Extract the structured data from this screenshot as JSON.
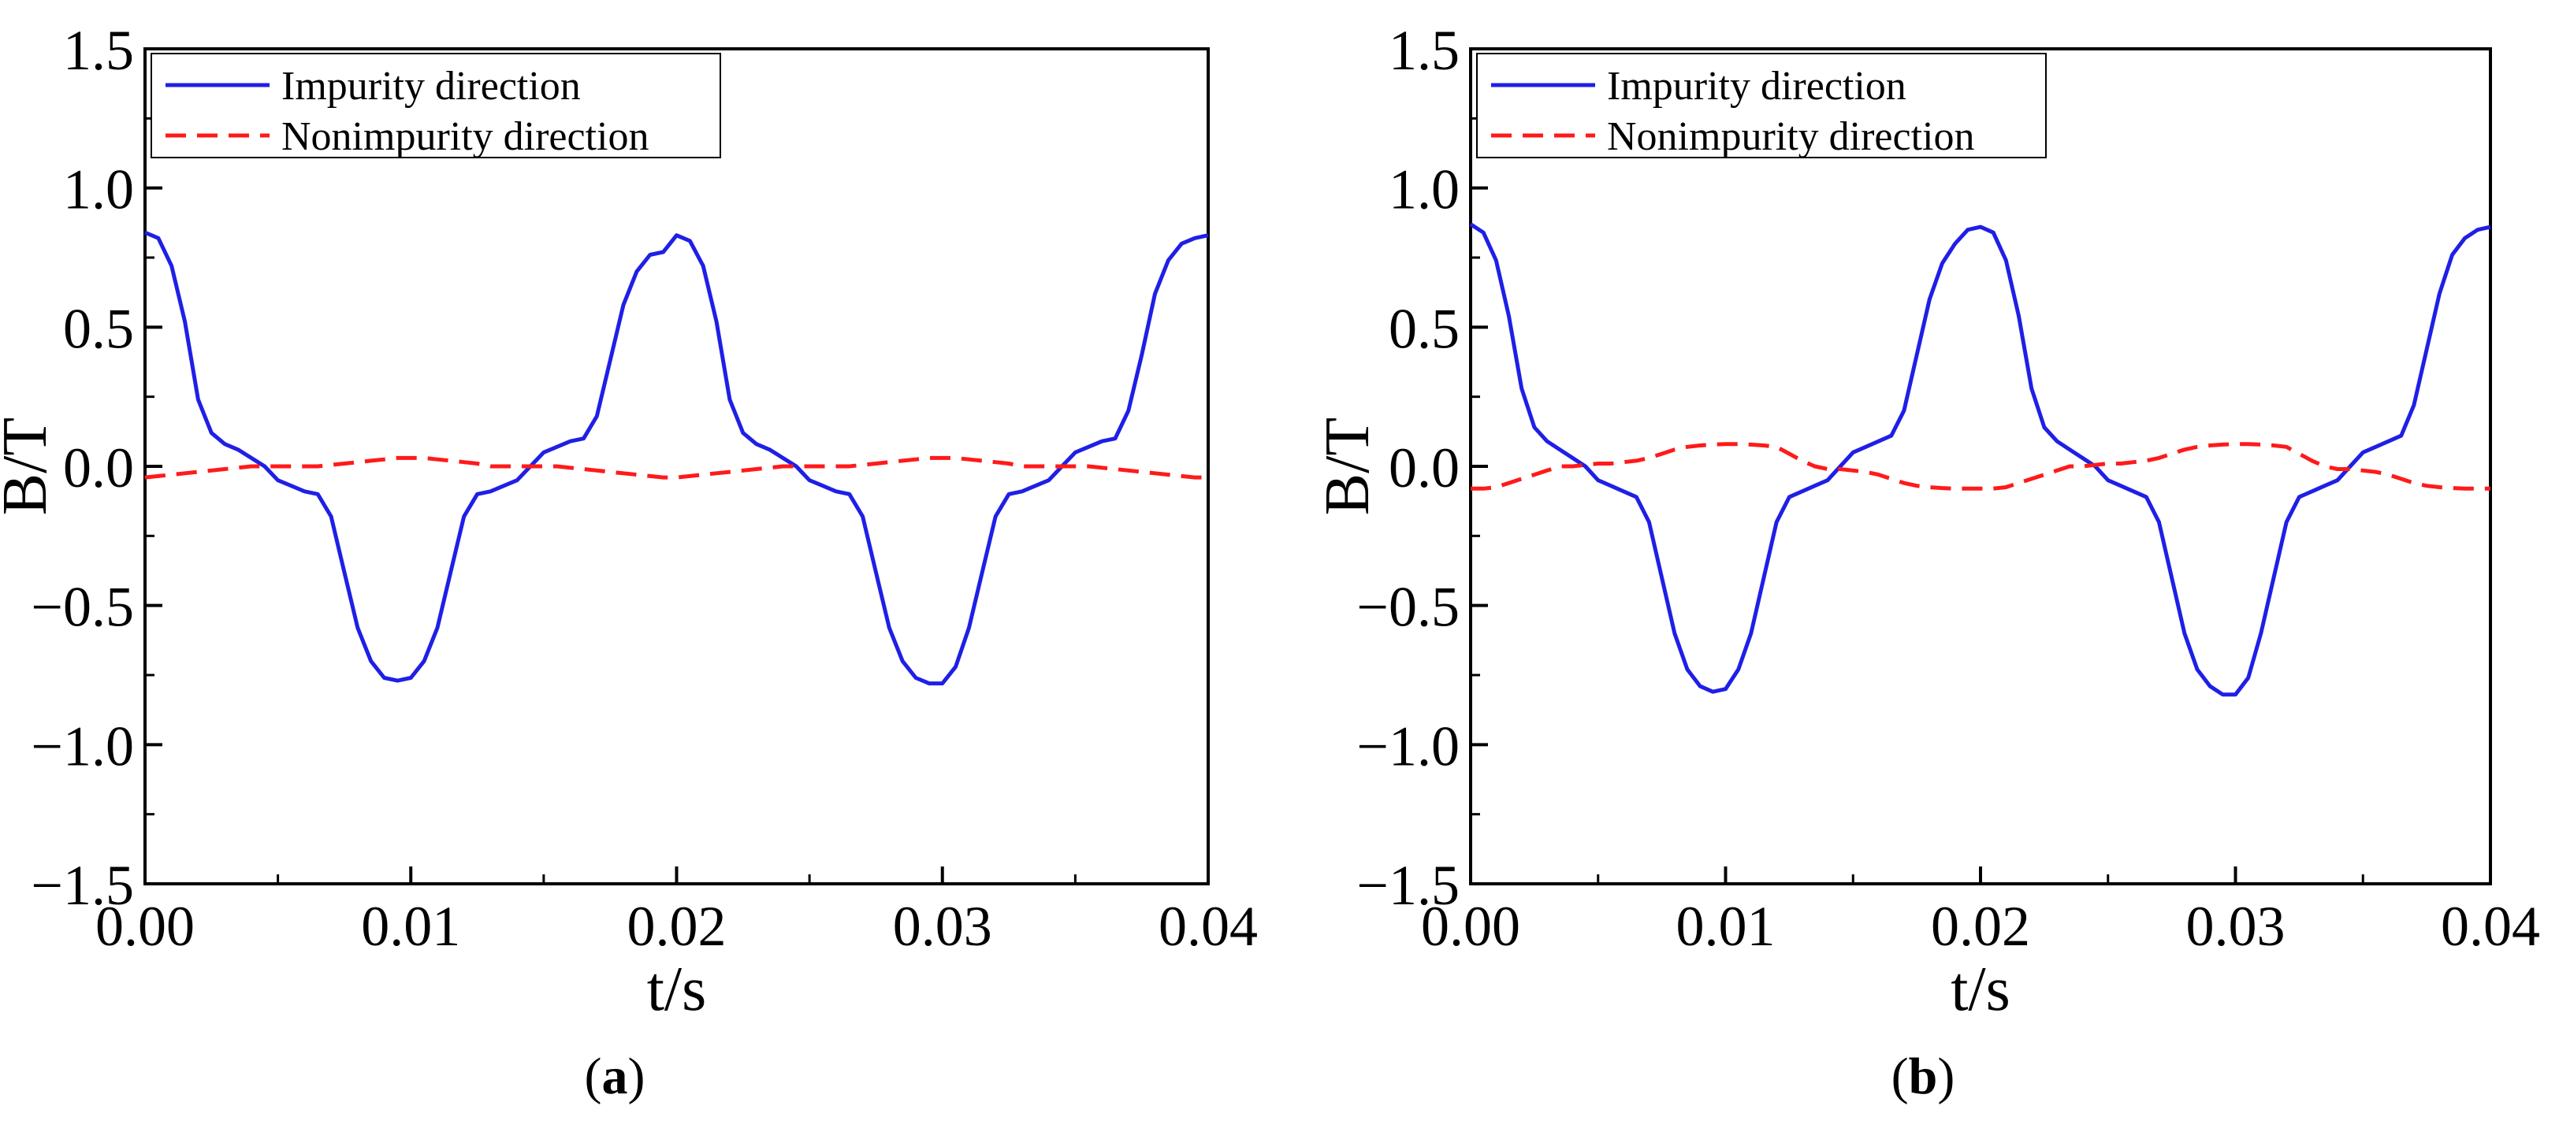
{
  "chart_data": [
    {
      "type": "line",
      "panel_label": "a",
      "caption_open": "(",
      "caption_close": ")",
      "xlabel": "t/s",
      "ylabel": "B/T",
      "xlim": [
        0.0,
        0.04
      ],
      "ylim": [
        -1.5,
        1.5
      ],
      "xticks": [
        "0.00",
        "0.01",
        "0.02",
        "0.03",
        "0.04"
      ],
      "xtick_values": [
        0.0,
        0.01,
        0.02,
        0.03,
        0.04
      ],
      "yticks": [
        "1.5",
        "1.0",
        "0.5",
        "0.0",
        "−0.5",
        "−1.0",
        "−1.5"
      ],
      "ytick_values": [
        1.5,
        1.0,
        0.5,
        0.0,
        -0.5,
        -1.0,
        -1.5
      ],
      "legend_position": "top-left",
      "x": [
        0.0,
        0.0005,
        0.001,
        0.0015,
        0.002,
        0.0025,
        0.003,
        0.0035,
        0.004,
        0.0045,
        0.005,
        0.0055,
        0.006,
        0.0065,
        0.007,
        0.0075,
        0.008,
        0.0085,
        0.009,
        0.0095,
        0.01,
        0.0105,
        0.011,
        0.0115,
        0.012,
        0.0125,
        0.013,
        0.0135,
        0.014,
        0.0145,
        0.015,
        0.0155,
        0.016,
        0.0165,
        0.017,
        0.0175,
        0.018,
        0.0185,
        0.019,
        0.0195,
        0.02,
        0.0205,
        0.021,
        0.0215,
        0.022,
        0.0225,
        0.023,
        0.0235,
        0.024,
        0.0245,
        0.025,
        0.0255,
        0.026,
        0.0265,
        0.027,
        0.0275,
        0.028,
        0.0285,
        0.029,
        0.0295,
        0.03,
        0.0305,
        0.031,
        0.0315,
        0.032,
        0.0325,
        0.033,
        0.0335,
        0.034,
        0.0345,
        0.035,
        0.0355,
        0.036,
        0.0365,
        0.037,
        0.0375,
        0.038,
        0.0385,
        0.039,
        0.0395,
        0.04
      ],
      "series": [
        {
          "name": "Impurity direction",
          "color": "#1f1fe6",
          "style": "solid",
          "values": [
            0.84,
            0.82,
            0.72,
            0.52,
            0.24,
            0.12,
            0.08,
            0.06,
            0.03,
            0.0,
            -0.05,
            -0.07,
            -0.09,
            -0.1,
            -0.18,
            -0.38,
            -0.58,
            -0.7,
            -0.76,
            -0.77,
            -0.76,
            -0.7,
            -0.58,
            -0.38,
            -0.18,
            -0.1,
            -0.09,
            -0.07,
            -0.05,
            0.0,
            0.05,
            0.07,
            0.09,
            0.1,
            0.18,
            0.38,
            0.58,
            0.7,
            0.76,
            0.77,
            0.83,
            0.81,
            0.72,
            0.52,
            0.24,
            0.12,
            0.08,
            0.06,
            0.03,
            0.0,
            -0.05,
            -0.07,
            -0.09,
            -0.1,
            -0.18,
            -0.38,
            -0.58,
            -0.7,
            -0.76,
            -0.78,
            -0.78,
            -0.72,
            -0.58,
            -0.38,
            -0.18,
            -0.1,
            -0.09,
            -0.07,
            -0.05,
            0.0,
            0.05,
            0.07,
            0.09,
            0.1,
            0.2,
            0.4,
            0.62,
            0.74,
            0.8,
            0.82,
            0.83
          ]
        },
        {
          "name": "Nonimpurity direction",
          "color": "#ff1a1a",
          "style": "dashed",
          "values": [
            -0.04,
            -0.035,
            -0.03,
            -0.025,
            -0.02,
            -0.015,
            -0.01,
            -0.005,
            0.0,
            0.0,
            0.0,
            0.0,
            0.0,
            0.0,
            0.005,
            0.01,
            0.015,
            0.02,
            0.025,
            0.03,
            0.03,
            0.03,
            0.025,
            0.02,
            0.015,
            0.01,
            0.0,
            0.0,
            0.0,
            0.0,
            0.0,
            0.0,
            -0.005,
            -0.01,
            -0.015,
            -0.02,
            -0.025,
            -0.03,
            -0.035,
            -0.04,
            -0.04,
            -0.035,
            -0.03,
            -0.025,
            -0.02,
            -0.015,
            -0.01,
            -0.005,
            0.0,
            0.0,
            0.0,
            0.0,
            0.0,
            0.0,
            0.005,
            0.01,
            0.015,
            0.02,
            0.025,
            0.03,
            0.03,
            0.03,
            0.025,
            0.02,
            0.015,
            0.01,
            0.0,
            0.0,
            0.0,
            0.0,
            0.0,
            0.0,
            -0.005,
            -0.01,
            -0.015,
            -0.02,
            -0.025,
            -0.03,
            -0.035,
            -0.04,
            -0.04
          ]
        }
      ]
    },
    {
      "type": "line",
      "panel_label": "b",
      "caption_open": "(",
      "caption_close": ")",
      "xlabel": "t/s",
      "ylabel": "B/T",
      "xlim": [
        0.0,
        0.04
      ],
      "ylim": [
        -1.5,
        1.5
      ],
      "xticks": [
        "0.00",
        "0.01",
        "0.02",
        "0.03",
        "0.04"
      ],
      "xtick_values": [
        0.0,
        0.01,
        0.02,
        0.03,
        0.04
      ],
      "yticks": [
        "1.5",
        "1.0",
        "0.5",
        "0.0",
        "−0.5",
        "−1.0",
        "−1.5"
      ],
      "ytick_values": [
        1.5,
        1.0,
        0.5,
        0.0,
        -0.5,
        -1.0,
        -1.5
      ],
      "legend_position": "top-left",
      "x": [
        0.0,
        0.0005,
        0.001,
        0.0015,
        0.002,
        0.0025,
        0.003,
        0.0035,
        0.004,
        0.0045,
        0.005,
        0.0055,
        0.006,
        0.0065,
        0.007,
        0.0075,
        0.008,
        0.0085,
        0.009,
        0.0095,
        0.01,
        0.0105,
        0.011,
        0.0115,
        0.012,
        0.0125,
        0.013,
        0.0135,
        0.014,
        0.0145,
        0.015,
        0.0155,
        0.016,
        0.0165,
        0.017,
        0.0175,
        0.018,
        0.0185,
        0.019,
        0.0195,
        0.02,
        0.0205,
        0.021,
        0.0215,
        0.022,
        0.0225,
        0.023,
        0.0235,
        0.024,
        0.0245,
        0.025,
        0.0255,
        0.026,
        0.0265,
        0.027,
        0.0275,
        0.028,
        0.0285,
        0.029,
        0.0295,
        0.03,
        0.0305,
        0.031,
        0.0315,
        0.032,
        0.0325,
        0.033,
        0.0335,
        0.034,
        0.0345,
        0.035,
        0.0355,
        0.036,
        0.0365,
        0.037,
        0.0375,
        0.038,
        0.0385,
        0.039,
        0.0395,
        0.04
      ],
      "series": [
        {
          "name": "Impurity direction",
          "color": "#1f1fe6",
          "style": "solid",
          "values": [
            0.87,
            0.84,
            0.74,
            0.54,
            0.28,
            0.14,
            0.09,
            0.06,
            0.03,
            0.0,
            -0.05,
            -0.07,
            -0.09,
            -0.11,
            -0.2,
            -0.4,
            -0.6,
            -0.73,
            -0.79,
            -0.81,
            -0.8,
            -0.73,
            -0.6,
            -0.4,
            -0.2,
            -0.11,
            -0.09,
            -0.07,
            -0.05,
            0.0,
            0.05,
            0.07,
            0.09,
            0.11,
            0.2,
            0.4,
            0.6,
            0.73,
            0.8,
            0.85,
            0.86,
            0.84,
            0.74,
            0.54,
            0.28,
            0.14,
            0.09,
            0.06,
            0.03,
            0.0,
            -0.05,
            -0.07,
            -0.09,
            -0.11,
            -0.2,
            -0.4,
            -0.6,
            -0.73,
            -0.79,
            -0.82,
            -0.82,
            -0.76,
            -0.6,
            -0.4,
            -0.2,
            -0.11,
            -0.09,
            -0.07,
            -0.05,
            0.0,
            0.05,
            0.07,
            0.09,
            0.11,
            0.22,
            0.42,
            0.62,
            0.76,
            0.82,
            0.85,
            0.86
          ]
        },
        {
          "name": "Nonimpurity direction",
          "color": "#ff1a1a",
          "style": "dashed",
          "values": [
            -0.08,
            -0.08,
            -0.075,
            -0.06,
            -0.045,
            -0.03,
            -0.015,
            0.0,
            0.0,
            0.005,
            0.01,
            0.01,
            0.015,
            0.02,
            0.03,
            0.045,
            0.06,
            0.07,
            0.075,
            0.078,
            0.08,
            0.08,
            0.078,
            0.075,
            0.07,
            0.045,
            0.02,
            0.0,
            -0.01,
            -0.01,
            -0.015,
            -0.02,
            -0.03,
            -0.045,
            -0.06,
            -0.07,
            -0.075,
            -0.078,
            -0.08,
            -0.08,
            -0.08,
            -0.08,
            -0.075,
            -0.06,
            -0.045,
            -0.03,
            -0.015,
            0.0,
            0.0,
            0.005,
            0.01,
            0.01,
            0.015,
            0.02,
            0.03,
            0.045,
            0.06,
            0.07,
            0.075,
            0.078,
            0.08,
            0.08,
            0.078,
            0.075,
            0.07,
            0.045,
            0.02,
            0.0,
            -0.01,
            -0.01,
            -0.015,
            -0.02,
            -0.03,
            -0.045,
            -0.06,
            -0.07,
            -0.075,
            -0.078,
            -0.08,
            -0.08,
            -0.08
          ]
        }
      ]
    }
  ]
}
